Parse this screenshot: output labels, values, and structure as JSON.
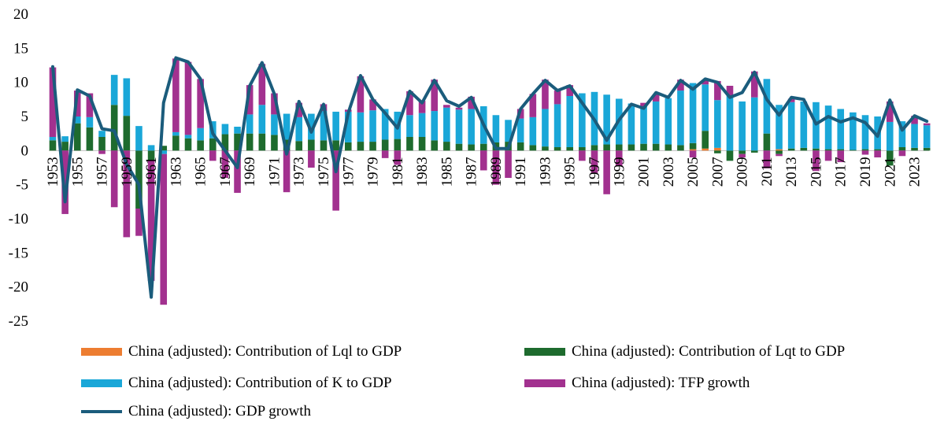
{
  "chart_data": {
    "type": "bar",
    "stacked": true,
    "title": "",
    "xlabel": "",
    "ylabel": "",
    "ylim": [
      -25,
      20
    ],
    "yticks": [
      20,
      15,
      10,
      5,
      0,
      -5,
      -10,
      -15,
      -20,
      -25
    ],
    "years": [
      1953,
      1954,
      1955,
      1956,
      1957,
      1958,
      1959,
      1960,
      1961,
      1962,
      1963,
      1964,
      1965,
      1966,
      1967,
      1968,
      1969,
      1970,
      1971,
      1972,
      1973,
      1974,
      1975,
      1976,
      1977,
      1978,
      1979,
      1980,
      1981,
      1982,
      1983,
      1984,
      1985,
      1986,
      1987,
      1988,
      1989,
      1990,
      1991,
      1992,
      1993,
      1994,
      1995,
      1996,
      1997,
      1998,
      1999,
      2000,
      2001,
      2002,
      2003,
      2004,
      2005,
      2006,
      2007,
      2008,
      2009,
      2010,
      2011,
      2012,
      2013,
      2014,
      2015,
      2016,
      2017,
      2018,
      2019,
      2020,
      2021,
      2022,
      2023,
      2024
    ],
    "xtick_labels": [
      "1953",
      "1955",
      "1957",
      "1959",
      "1961",
      "1963",
      "1965",
      "1967",
      "1969",
      "1971",
      "1973",
      "1975",
      "1977",
      "1979",
      "1981",
      "1983",
      "1985",
      "1987",
      "1989",
      "1991",
      "1993",
      "1995",
      "1997",
      "1999",
      "2001",
      "2003",
      "2005",
      "2007",
      "2009",
      "2011",
      "2013",
      "2015",
      "2017",
      "2019",
      "2021",
      "2023"
    ],
    "colors": {
      "lql": "#ed7d31",
      "lqt": "#1e6b2e",
      "k": "#1aa7d8",
      "tfp": "#a2318f",
      "gdp": "#1b5c7c"
    },
    "series": [
      {
        "key": "lql",
        "name": "China (adjusted): Contribution of Lql to GDP",
        "values": [
          0,
          0,
          0,
          0,
          0,
          0,
          0,
          0,
          0,
          0,
          0,
          0,
          0,
          0,
          0,
          0,
          0,
          0,
          0,
          0,
          0,
          0,
          0,
          0,
          0,
          0,
          0,
          0,
          0,
          0,
          0,
          0,
          0,
          0,
          0,
          0,
          0,
          0,
          0,
          0,
          0,
          0,
          0,
          0,
          0,
          0,
          0,
          0,
          0,
          0,
          0,
          0,
          0.2,
          0.3,
          0.4,
          0,
          0,
          0,
          0,
          0.2,
          0,
          0,
          0,
          0,
          0,
          0,
          0,
          0,
          0,
          0,
          0,
          0
        ]
      },
      {
        "key": "lqt",
        "name": "China (adjusted): Contribution of Lqt to GDP",
        "values": [
          1.5,
          1.3,
          4.0,
          3.4,
          2.0,
          6.7,
          5.1,
          -8.5,
          -1.5,
          0.7,
          2.2,
          1.8,
          1.5,
          1.8,
          2.4,
          2.5,
          2.5,
          2.5,
          2.3,
          1.6,
          1.4,
          1.6,
          1.5,
          1.5,
          1.2,
          1.3,
          1.3,
          1.6,
          1.7,
          2.0,
          2.0,
          1.5,
          1.3,
          1.0,
          0.9,
          1.0,
          1.2,
          1.3,
          1.2,
          0.8,
          0.6,
          0.5,
          0.5,
          0.5,
          0.8,
          0.9,
          0.9,
          0.9,
          1.0,
          1.0,
          0.9,
          0.8,
          0.9,
          2.6,
          -0.4,
          -1.5,
          -0.5,
          -0.3,
          2.5,
          -0.5,
          0.3,
          0.4,
          0.3,
          0.2,
          0.2,
          0.1,
          0.2,
          0.2,
          -2.2,
          0.5,
          0.4,
          0.4
        ]
      },
      {
        "key": "k",
        "name": "China (adjusted): Contribution of K to GDP",
        "values": [
          0.5,
          0.8,
          1.0,
          1.5,
          0.9,
          4.4,
          5.5,
          3.6,
          0.8,
          -0.5,
          0.5,
          0.5,
          1.8,
          2.5,
          1.5,
          1.0,
          2.8,
          4.2,
          3.0,
          3.8,
          3.5,
          3.8,
          4.3,
          4.2,
          4.5,
          4.3,
          4.6,
          4.5,
          4.0,
          3.2,
          3.5,
          4.3,
          5.0,
          5.0,
          5.2,
          5.5,
          4.0,
          3.2,
          3.5,
          4.1,
          5.5,
          6.3,
          7.5,
          7.9,
          7.8,
          7.3,
          6.7,
          6.0,
          5.5,
          6.2,
          6.8,
          8.0,
          8.8,
          6.8,
          7.0,
          8.0,
          7.2,
          7.8,
          8.0,
          6.5,
          6.8,
          6.8,
          6.8,
          6.4,
          5.9,
          5.5,
          5.0,
          4.8,
          4.2,
          3.8,
          3.5,
          3.3
        ]
      },
      {
        "key": "tfp",
        "name": "China (adjusted): TFP growth",
        "values": [
          10.2,
          -9.3,
          3.8,
          3.5,
          -0.5,
          -8.3,
          -12.7,
          -4.0,
          -17.6,
          -22.1,
          10.8,
          10.7,
          7.2,
          -1.5,
          -4.0,
          -6.2,
          4.3,
          6.0,
          3.1,
          -6.1,
          2.1,
          -2.5,
          1.0,
          -8.8,
          0.3,
          5.3,
          1.6,
          -1.1,
          -2.1,
          3.5,
          1.8,
          4.6,
          0.4,
          0.3,
          1.8,
          -2.9,
          -5.0,
          -4.0,
          1.4,
          3.4,
          4.3,
          2.0,
          1.6,
          -1.5,
          -3.3,
          -6.4,
          -2.3,
          0,
          0.5,
          1.0,
          0,
          1.6,
          -1.0,
          0.7,
          2.8,
          1.5,
          -0.5,
          3.8,
          -2.6,
          -0.3,
          0.5,
          0,
          -3.0,
          -1.5,
          -1.7,
          0,
          -0.6,
          -1.0,
          3.0,
          -0.8,
          1.2,
          0.3
        ]
      }
    ],
    "line_series": {
      "key": "gdp",
      "name": "China (adjusted): GDP growth",
      "values": [
        12.3,
        -7.5,
        8.9,
        8.0,
        3.2,
        2.9,
        -2.0,
        -5.0,
        -21.5,
        7.0,
        13.6,
        13.0,
        10.5,
        2.5,
        0,
        -2.5,
        9.5,
        12.9,
        8.3,
        -0.5,
        7.2,
        2.7,
        6.8,
        -3.1,
        5.5,
        11.0,
        7.5,
        5.5,
        3.3,
        8.7,
        7.0,
        10.3,
        7.3,
        6.5,
        7.8,
        3.8,
        0.3,
        0.3,
        6.1,
        8.3,
        10.3,
        8.8,
        9.5,
        7.0,
        4.5,
        1.5,
        4.5,
        6.8,
        6.2,
        8.5,
        7.8,
        10.3,
        9.0,
        10.5,
        10.0,
        7.8,
        8.5,
        11.5,
        7.5,
        5.2,
        7.8,
        7.5,
        3.9,
        5.0,
        4.2,
        4.8,
        4.1,
        2.1,
        7.4,
        3.0,
        5.1,
        4.3
      ]
    }
  }
}
